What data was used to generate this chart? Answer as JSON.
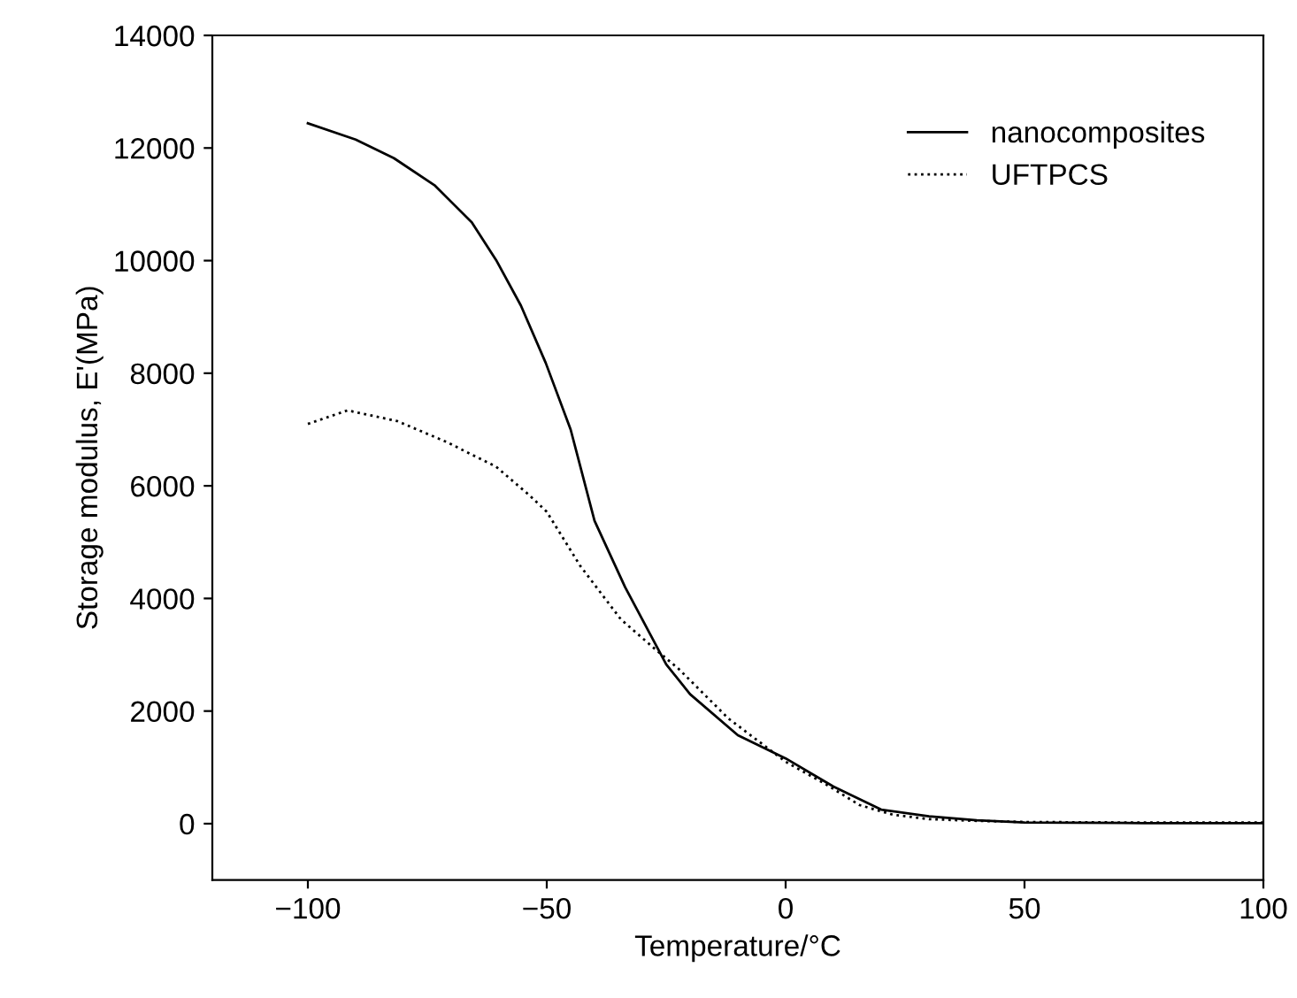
{
  "chart_data": {
    "type": "line",
    "xlabel": "Temperature/°C",
    "ylabel": "Storage modulus, E'(MPa)",
    "xlim": [
      -120,
      100
    ],
    "ylim": [
      -1000,
      14000
    ],
    "xticks": [
      {
        "value": -100,
        "label": "−100"
      },
      {
        "value": -50,
        "label": "−50"
      },
      0,
      50,
      100
    ],
    "yticks": [
      0,
      2000,
      4000,
      6000,
      8000,
      10000,
      12000,
      14000
    ],
    "grid": false,
    "legend": "top right",
    "series": [
      {
        "name": "nanocomposites",
        "color": "#000000",
        "line_style": "solid",
        "x": [
          -100,
          -90,
          -82,
          -73.5,
          -65.7,
          -60.6,
          -55.4,
          -50.2,
          -45,
          -40,
          -33.6,
          -25,
          -20,
          -10,
          0,
          10,
          20,
          30,
          40,
          50,
          75,
          100
        ],
        "values": [
          12440,
          12150,
          11820,
          11340,
          10680,
          10010,
          9200,
          8180,
          7000,
          5380,
          4200,
          2830,
          2300,
          1570,
          1160,
          660,
          250,
          130,
          60,
          20,
          10,
          10
        ]
      },
      {
        "name": "UFTPCS",
        "color": "#000000",
        "line_style": "dotted",
        "x": [
          -100,
          -91.7,
          -81.3,
          -71,
          -60.6,
          -53.6,
          -50,
          -43,
          -34.5,
          -27.6,
          -22.4,
          -12,
          0,
          8.6,
          15.5,
          22.4,
          30,
          40,
          50,
          75,
          100
        ],
        "values": [
          7100,
          7340,
          7150,
          6780,
          6340,
          5830,
          5540,
          4580,
          3630,
          3120,
          2750,
          1870,
          1100,
          690,
          330,
          160,
          80,
          50,
          30,
          20,
          20
        ]
      }
    ]
  }
}
